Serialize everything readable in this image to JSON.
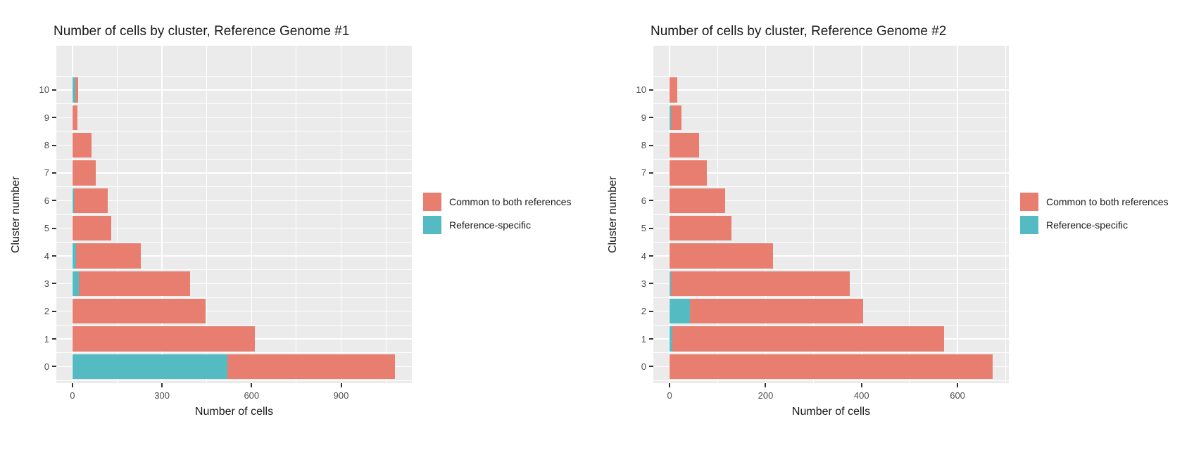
{
  "page": {
    "background": "#ffffff"
  },
  "colors": {
    "common": "#E87E70",
    "specific": "#55BBC2",
    "panel_bg": "#EBEBEB",
    "grid": "#FFFFFF",
    "tick_text": "#4d4d4d",
    "title_text": "#1a1a1a"
  },
  "legend": {
    "items": [
      {
        "label": "Common to both references",
        "color_key": "common"
      },
      {
        "label": "Reference-specific",
        "color_key": "specific"
      }
    ]
  },
  "chart_data": [
    {
      "type": "bar",
      "orientation": "horizontal",
      "stacked": true,
      "title": "Number of cells by cluster, Reference Genome #1",
      "xlabel": "Number of cells",
      "ylabel": "Cluster number",
      "categories": [
        "0",
        "1",
        "2",
        "3",
        "4",
        "5",
        "6",
        "7",
        "8",
        "9",
        "10"
      ],
      "series": [
        {
          "name": "Reference-specific",
          "color_key": "specific",
          "values": [
            520,
            0,
            0,
            22,
            13,
            0,
            5,
            0,
            0,
            0,
            10
          ]
        },
        {
          "name": "Common to both references",
          "color_key": "common",
          "values": [
            560,
            610,
            446,
            372,
            216,
            131,
            112,
            79,
            65,
            17,
            8
          ]
        }
      ],
      "totals": [
        1080,
        610,
        446,
        394,
        229,
        131,
        117,
        79,
        65,
        17,
        18
      ],
      "xticks": [
        0,
        300,
        600,
        900
      ],
      "xlim": [
        -54,
        1137
      ],
      "grid": true,
      "legend_position": "right",
      "panel_bg": "#EBEBEB"
    },
    {
      "type": "bar",
      "orientation": "horizontal",
      "stacked": true,
      "title": "Number of cells by cluster, Reference Genome #2",
      "xlabel": "Number of cells",
      "ylabel": "Cluster number",
      "categories": [
        "0",
        "1",
        "2",
        "3",
        "4",
        "5",
        "6",
        "7",
        "8",
        "9",
        "10"
      ],
      "series": [
        {
          "name": "Reference-specific",
          "color_key": "specific",
          "values": [
            0,
            5,
            42,
            3,
            0,
            0,
            0,
            0,
            0,
            3,
            0
          ]
        },
        {
          "name": "Common to both references",
          "color_key": "common",
          "values": [
            673,
            567,
            361,
            372,
            216,
            129,
            115,
            78,
            61,
            21,
            16
          ]
        }
      ],
      "totals": [
        673,
        572,
        403,
        375,
        216,
        129,
        115,
        78,
        61,
        24,
        16
      ],
      "xticks": [
        0,
        200,
        400,
        600
      ],
      "xlim": [
        -34,
        707
      ],
      "grid": true,
      "legend_position": "right",
      "panel_bg": "#EBEBEB"
    }
  ]
}
